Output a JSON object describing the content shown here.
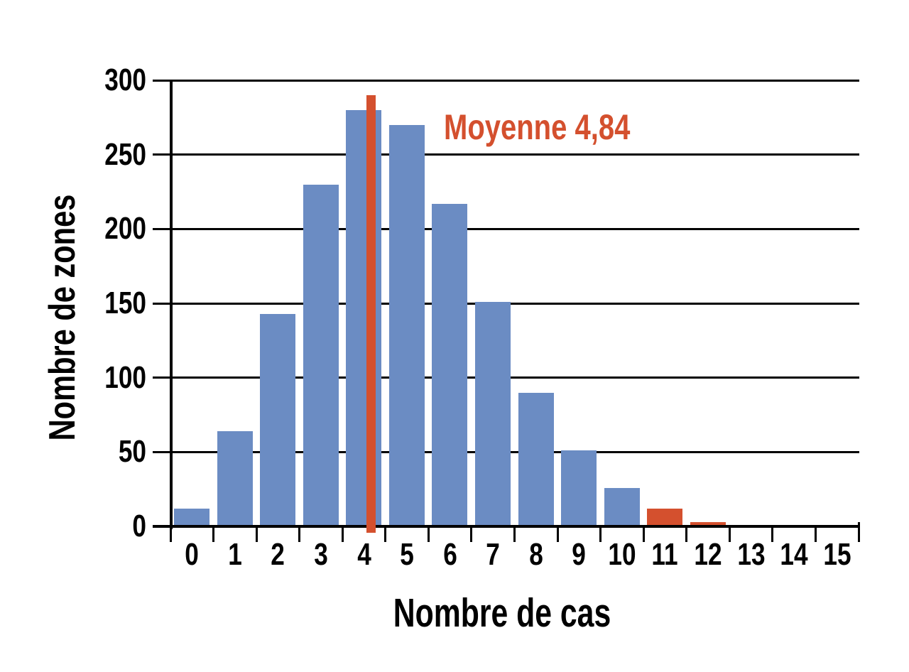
{
  "chart_data": {
    "type": "bar",
    "title": "",
    "xlabel": "Nombre de cas",
    "ylabel": "Nombre de zones",
    "categories": [
      "0",
      "1",
      "2",
      "3",
      "4",
      "5",
      "6",
      "7",
      "8",
      "9",
      "10",
      "11",
      "12",
      "13",
      "14",
      "15"
    ],
    "values": [
      12,
      64,
      143,
      230,
      280,
      270,
      217,
      151,
      90,
      51,
      26,
      12,
      3,
      1,
      0,
      0
    ],
    "highlight_categories": [
      11,
      12,
      13
    ],
    "yticks": [
      0,
      50,
      100,
      150,
      200,
      250,
      300
    ],
    "ylim": [
      0,
      300
    ],
    "grid": "horizontal gridlines at every y tick, drawn behind bars",
    "legend": "none",
    "mean": {
      "value": 4.84,
      "label": "Moyenne 4,84"
    },
    "colors": {
      "bar": "#6B8CC3",
      "bar_highlight": "#D4502E",
      "mean_line": "#D4502E",
      "mean_text": "#D4502E",
      "axis": "#000000",
      "background": "#FFFFFF"
    }
  }
}
